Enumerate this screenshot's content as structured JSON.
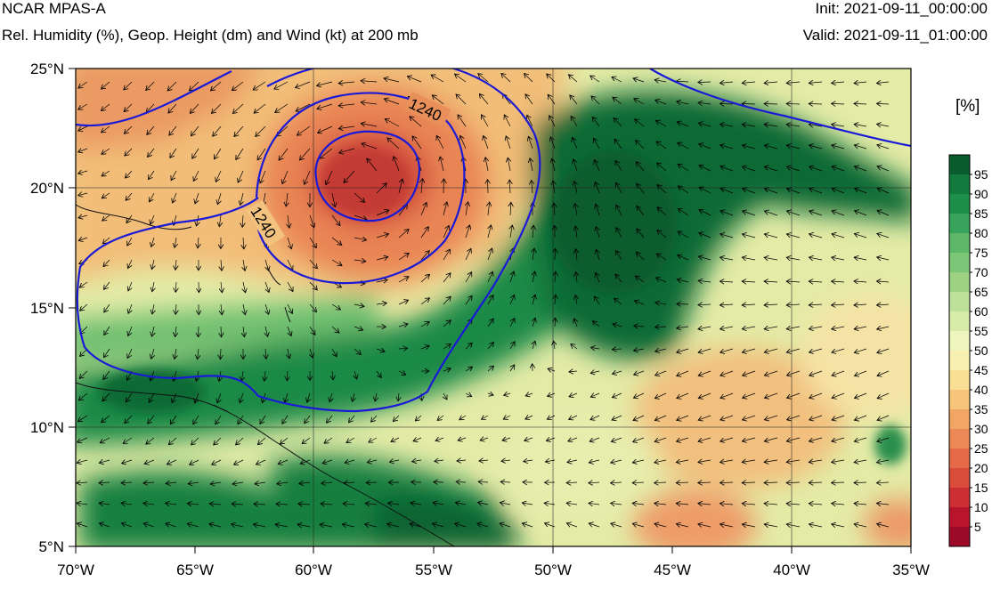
{
  "header": {
    "title": "NCAR MPAS-A",
    "subtitle": "Rel. Humidity (%), Geop. Height (dm) and Wind (kt) at 200 mb",
    "init": "Init: 2021-09-11_00:00:00",
    "valid": "Valid: 2021-09-11_01:00:00"
  },
  "map": {
    "lon_ticks": [
      "70°W",
      "65°W",
      "60°W",
      "55°W",
      "50°W",
      "45°W",
      "40°W",
      "35°W"
    ],
    "lat_ticks": [
      "25°N",
      "20°N",
      "15°N",
      "10°N",
      "5°N"
    ],
    "contour_labels": [
      "1240",
      "1240"
    ],
    "contour_color": "#1a1ad6"
  },
  "colorbar": {
    "unit": "[%]",
    "labels": [
      "95",
      "90",
      "85",
      "80",
      "75",
      "70",
      "65",
      "60",
      "55",
      "50",
      "45",
      "40",
      "35",
      "30",
      "25",
      "20",
      "15",
      "10",
      "5"
    ],
    "colors": [
      "#0a5c2e",
      "#127a3c",
      "#1e8f4a",
      "#38a35a",
      "#5cb868",
      "#7cc777",
      "#9ed283",
      "#bde19a",
      "#d8ecaa",
      "#eef5bd",
      "#f8f0b0",
      "#f8df94",
      "#f6c47a",
      "#f2a665",
      "#ec8855",
      "#e56a48",
      "#db4d3b",
      "#cc2f33",
      "#b8142c",
      "#9c0a2a"
    ]
  }
}
